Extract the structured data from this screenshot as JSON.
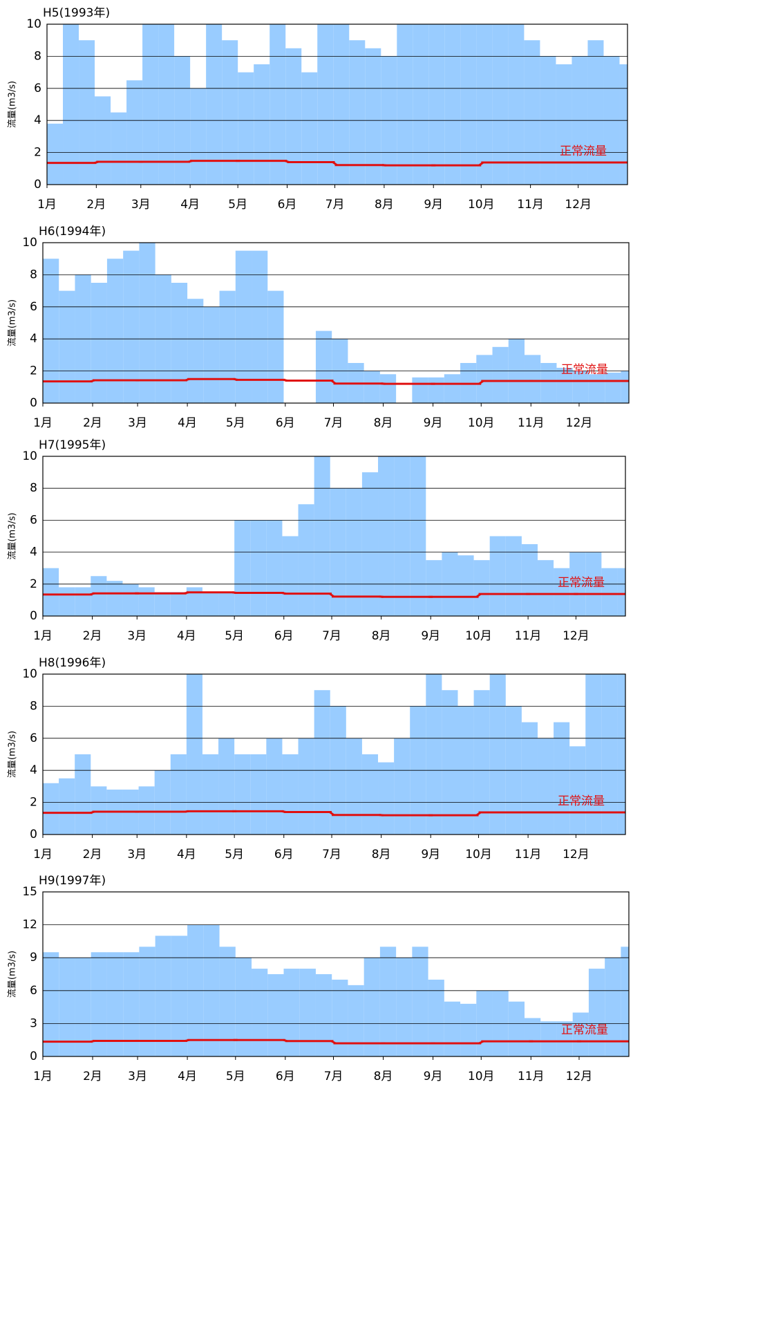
{
  "chart_data": [
    {
      "type": "bar",
      "title": "H5(1993年)",
      "y_label": "流量(m3/s)",
      "color": "#99ccff",
      "x": [
        0,
        10,
        20,
        30,
        40,
        50,
        60,
        70,
        80,
        90,
        100,
        110,
        120,
        130,
        140,
        150,
        160,
        170,
        180,
        190,
        200,
        210,
        220,
        230,
        240,
        250,
        260,
        270,
        280,
        290,
        300,
        310,
        320,
        330,
        340,
        350,
        360
      ],
      "values": [
        3.8,
        10,
        9,
        5.5,
        4.5,
        6.5,
        10,
        10,
        8,
        6,
        10,
        9,
        7,
        7.5,
        10,
        8.5,
        7,
        10,
        10,
        9,
        8.5,
        8,
        10,
        10,
        10,
        10,
        10,
        10,
        10,
        10,
        9,
        8,
        7.5,
        8,
        9,
        8,
        7.5
      ],
      "xlim": [
        0,
        365
      ],
      "ylim": [
        0,
        10
      ],
      "yticks": [
        0,
        2,
        4,
        6,
        8,
        10
      ],
      "grid": true,
      "xticks": [
        {
          "value": 0,
          "label": "1月"
        },
        {
          "value": 31,
          "label": "2月"
        },
        {
          "value": 59,
          "label": "3月"
        },
        {
          "value": 90,
          "label": "4月"
        },
        {
          "value": 120,
          "label": "5月"
        },
        {
          "value": 151,
          "label": "6月"
        },
        {
          "value": 181,
          "label": "7月"
        },
        {
          "value": 212,
          "label": "8月"
        },
        {
          "value": 243,
          "label": "9月"
        },
        {
          "value": 273,
          "label": "10月"
        },
        {
          "value": 304,
          "label": "11月"
        },
        {
          "value": 334,
          "label": "12月"
        }
      ],
      "normal_flow": {
        "label": "正常流量",
        "color": "#e01010",
        "x": [
          0,
          31,
          59,
          90,
          120,
          151,
          181,
          212,
          243,
          273,
          304,
          334
        ],
        "values": [
          1.35,
          1.42,
          1.42,
          1.48,
          1.48,
          1.4,
          1.22,
          1.2,
          1.2,
          1.38,
          1.38,
          1.38
        ]
      }
    },
    {
      "type": "bar",
      "title": "H6(1994年)",
      "y_label": "流量(m3/s)",
      "color": "#99ccff",
      "x": [
        0,
        10,
        20,
        30,
        40,
        50,
        60,
        70,
        80,
        90,
        100,
        110,
        120,
        130,
        140,
        150,
        160,
        170,
        180,
        190,
        200,
        210,
        220,
        230,
        240,
        250,
        260,
        270,
        280,
        290,
        300,
        310,
        320,
        330,
        340,
        350,
        360
      ],
      "values": [
        9,
        7,
        8,
        7.5,
        9,
        9.5,
        10,
        8,
        7.5,
        6.5,
        6,
        7,
        9.5,
        9.5,
        7,
        null,
        null,
        4.5,
        4,
        2.5,
        2,
        1.8,
        null,
        1.6,
        1.6,
        1.8,
        2.5,
        3,
        3.5,
        4,
        3,
        2.5,
        2.2,
        2,
        1.8,
        1.9,
        2
      ],
      "xlim": [
        0,
        365
      ],
      "ylim": [
        0,
        10
      ],
      "yticks": [
        0,
        2,
        4,
        6,
        8,
        10
      ],
      "grid": true,
      "xticks": [
        {
          "value": 0,
          "label": "1月"
        },
        {
          "value": 31,
          "label": "2月"
        },
        {
          "value": 59,
          "label": "3月"
        },
        {
          "value": 90,
          "label": "4月"
        },
        {
          "value": 120,
          "label": "5月"
        },
        {
          "value": 151,
          "label": "6月"
        },
        {
          "value": 181,
          "label": "7月"
        },
        {
          "value": 212,
          "label": "8月"
        },
        {
          "value": 243,
          "label": "9月"
        },
        {
          "value": 273,
          "label": "10月"
        },
        {
          "value": 304,
          "label": "11月"
        },
        {
          "value": 334,
          "label": "12月"
        }
      ],
      "normal_flow": {
        "label": "正常流量",
        "color": "#e01010",
        "x": [
          0,
          31,
          59,
          90,
          120,
          151,
          181,
          212,
          243,
          273,
          304,
          334
        ],
        "values": [
          1.35,
          1.42,
          1.42,
          1.5,
          1.45,
          1.4,
          1.22,
          1.2,
          1.2,
          1.38,
          1.38,
          1.38
        ]
      }
    },
    {
      "type": "bar",
      "title": "H7(1995年)",
      "y_label": "流量(m3/s)",
      "color": "#99ccff",
      "x": [
        0,
        10,
        20,
        30,
        40,
        50,
        60,
        70,
        80,
        90,
        100,
        110,
        120,
        130,
        140,
        150,
        160,
        170,
        180,
        190,
        200,
        210,
        220,
        230,
        240,
        250,
        260,
        270,
        280,
        290,
        300,
        310,
        320,
        330,
        340,
        350,
        360
      ],
      "values": [
        3,
        1.8,
        1.8,
        2.5,
        2.2,
        2,
        1.8,
        1.5,
        1.5,
        1.8,
        1.5,
        1.5,
        6,
        6,
        6,
        5,
        7,
        10,
        8,
        8,
        9,
        10,
        10,
        10,
        3.5,
        4,
        3.8,
        3.5,
        5,
        5,
        4.5,
        3.5,
        3,
        4,
        4,
        3,
        3
      ],
      "xlim": [
        0,
        365
      ],
      "ylim": [
        0,
        10
      ],
      "yticks": [
        0,
        2,
        4,
        6,
        8,
        10
      ],
      "grid": true,
      "xticks": [
        {
          "value": 0,
          "label": "1月"
        },
        {
          "value": 31,
          "label": "2月"
        },
        {
          "value": 59,
          "label": "3月"
        },
        {
          "value": 90,
          "label": "4月"
        },
        {
          "value": 120,
          "label": "5月"
        },
        {
          "value": 151,
          "label": "6月"
        },
        {
          "value": 181,
          "label": "7月"
        },
        {
          "value": 212,
          "label": "8月"
        },
        {
          "value": 243,
          "label": "9月"
        },
        {
          "value": 273,
          "label": "10月"
        },
        {
          "value": 304,
          "label": "11月"
        },
        {
          "value": 334,
          "label": "12月"
        }
      ],
      "normal_flow": {
        "label": "正常流量",
        "color": "#e01010",
        "x": [
          0,
          31,
          59,
          90,
          120,
          151,
          181,
          212,
          243,
          273,
          304,
          334
        ],
        "values": [
          1.35,
          1.42,
          1.42,
          1.48,
          1.45,
          1.4,
          1.22,
          1.2,
          1.2,
          1.38,
          1.38,
          1.38
        ]
      }
    },
    {
      "type": "bar",
      "title": "H8(1996年)",
      "y_label": "流量(m3/s)",
      "color": "#99ccff",
      "x": [
        0,
        10,
        20,
        30,
        40,
        50,
        60,
        70,
        80,
        90,
        100,
        110,
        120,
        130,
        140,
        150,
        160,
        170,
        180,
        190,
        200,
        210,
        220,
        230,
        240,
        250,
        260,
        270,
        280,
        290,
        300,
        310,
        320,
        330,
        340,
        350,
        360
      ],
      "values": [
        3.2,
        3.5,
        5,
        3,
        2.8,
        2.8,
        3,
        4,
        5,
        10,
        5,
        6,
        5,
        5,
        6,
        5,
        6,
        9,
        8,
        6,
        5,
        4.5,
        6,
        8,
        10,
        9,
        8,
        9,
        10,
        8,
        7,
        6,
        7,
        5.5,
        10,
        10,
        10
      ],
      "xlim": [
        0,
        365
      ],
      "ylim": [
        0,
        10
      ],
      "yticks": [
        0,
        2,
        4,
        6,
        8,
        10
      ],
      "grid": true,
      "xticks": [
        {
          "value": 0,
          "label": "1月"
        },
        {
          "value": 31,
          "label": "2月"
        },
        {
          "value": 59,
          "label": "3月"
        },
        {
          "value": 90,
          "label": "4月"
        },
        {
          "value": 120,
          "label": "5月"
        },
        {
          "value": 151,
          "label": "6月"
        },
        {
          "value": 181,
          "label": "7月"
        },
        {
          "value": 212,
          "label": "8月"
        },
        {
          "value": 243,
          "label": "9月"
        },
        {
          "value": 273,
          "label": "10月"
        },
        {
          "value": 304,
          "label": "11月"
        },
        {
          "value": 334,
          "label": "12月"
        }
      ],
      "normal_flow": {
        "label": "正常流量",
        "color": "#e01010",
        "x": [
          0,
          31,
          59,
          90,
          120,
          151,
          181,
          212,
          243,
          273,
          304,
          334
        ],
        "values": [
          1.35,
          1.42,
          1.42,
          1.45,
          1.45,
          1.4,
          1.22,
          1.2,
          1.2,
          1.38,
          1.38,
          1.38
        ]
      }
    },
    {
      "type": "bar",
      "title": "H9(1997年)",
      "y_label": "流量(m3/s)",
      "color": "#99ccff",
      "x": [
        0,
        10,
        20,
        30,
        40,
        50,
        60,
        70,
        80,
        90,
        100,
        110,
        120,
        130,
        140,
        150,
        160,
        170,
        180,
        190,
        200,
        210,
        220,
        230,
        240,
        250,
        260,
        270,
        280,
        290,
        300,
        310,
        320,
        330,
        340,
        350,
        360
      ],
      "values": [
        9.5,
        9,
        9,
        9.5,
        9.5,
        9.5,
        10,
        11,
        11,
        12,
        12,
        10,
        9,
        8,
        7.5,
        8,
        8,
        7.5,
        7,
        6.5,
        9,
        10,
        9,
        10,
        7,
        5,
        4.8,
        6,
        6,
        5,
        3.5,
        3.2,
        3.2,
        4,
        8,
        9,
        10
      ],
      "xlim": [
        0,
        365
      ],
      "ylim": [
        0,
        15
      ],
      "yticks": [
        0,
        3,
        6,
        9,
        12,
        15
      ],
      "grid": true,
      "xticks": [
        {
          "value": 0,
          "label": "1月"
        },
        {
          "value": 31,
          "label": "2月"
        },
        {
          "value": 59,
          "label": "3月"
        },
        {
          "value": 90,
          "label": "4月"
        },
        {
          "value": 120,
          "label": "5月"
        },
        {
          "value": 151,
          "label": "6月"
        },
        {
          "value": 181,
          "label": "7月"
        },
        {
          "value": 212,
          "label": "8月"
        },
        {
          "value": 243,
          "label": "9月"
        },
        {
          "value": 273,
          "label": "10月"
        },
        {
          "value": 304,
          "label": "11月"
        },
        {
          "value": 334,
          "label": "12月"
        }
      ],
      "normal_flow": {
        "label": "正常流量",
        "color": "#e01010",
        "x": [
          0,
          31,
          59,
          90,
          120,
          151,
          181,
          212,
          243,
          273,
          304,
          334
        ],
        "values": [
          1.35,
          1.42,
          1.42,
          1.5,
          1.5,
          1.4,
          1.2,
          1.2,
          1.2,
          1.38,
          1.38,
          1.38
        ]
      }
    }
  ]
}
